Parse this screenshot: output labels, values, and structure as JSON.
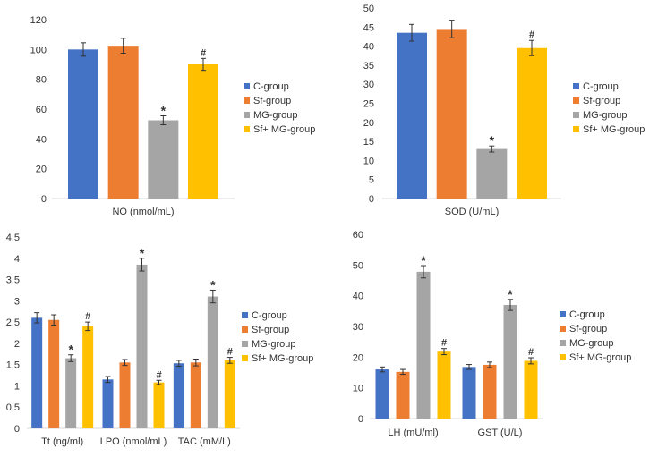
{
  "legend_colors": [
    "#4472C4",
    "#ED7D31",
    "#A5A5A5",
    "#FFC000"
  ],
  "chart_data": [
    {
      "type": "bar",
      "categories": [
        "NO (nmol/mL)"
      ],
      "series": [
        {
          "name": "C-group",
          "values": [
            100
          ],
          "errors": [
            4.5
          ],
          "marks": [
            ""
          ]
        },
        {
          "name": "Sf-group",
          "values": [
            102.5
          ],
          "errors": [
            5
          ],
          "marks": [
            ""
          ]
        },
        {
          "name": "MG-group",
          "values": [
            52.5
          ],
          "errors": [
            3
          ],
          "marks": [
            "*"
          ]
        },
        {
          "name": "Sf+ MG-group",
          "values": [
            90
          ],
          "errors": [
            4
          ],
          "marks": [
            "#"
          ]
        }
      ],
      "ylim": [
        0,
        120
      ],
      "yticks": [
        0,
        20,
        40,
        60,
        80,
        100,
        120
      ],
      "grid": false,
      "legend": "right"
    },
    {
      "type": "bar",
      "categories": [
        "SOD (U/mL)"
      ],
      "series": [
        {
          "name": "C-group",
          "values": [
            43.5
          ],
          "errors": [
            2.2
          ],
          "marks": [
            ""
          ]
        },
        {
          "name": "Sf-group",
          "values": [
            44.5
          ],
          "errors": [
            2.3
          ],
          "marks": [
            ""
          ]
        },
        {
          "name": "MG-group",
          "values": [
            13
          ],
          "errors": [
            0.8
          ],
          "marks": [
            "*"
          ]
        },
        {
          "name": "Sf+ MG-group",
          "values": [
            39.5
          ],
          "errors": [
            2
          ],
          "marks": [
            "#"
          ]
        }
      ],
      "ylim": [
        0,
        50
      ],
      "yticks": [
        0,
        5,
        10,
        15,
        20,
        25,
        30,
        35,
        40,
        45,
        50
      ],
      "grid": false,
      "legend": "right"
    },
    {
      "type": "bar",
      "categories": [
        "Tt (ng/ml)",
        "LPO (nmol/mL)",
        "TAC (mM/L)"
      ],
      "series": [
        {
          "name": "C-group",
          "values": [
            2.6,
            1.15,
            1.53
          ],
          "errors": [
            0.12,
            0.07,
            0.07
          ],
          "marks": [
            "",
            "",
            ""
          ]
        },
        {
          "name": "Sf-group",
          "values": [
            2.55,
            1.55,
            1.55
          ],
          "errors": [
            0.12,
            0.07,
            0.08
          ],
          "marks": [
            "",
            "",
            ""
          ]
        },
        {
          "name": "MG-group",
          "values": [
            1.65,
            3.85,
            3.1
          ],
          "errors": [
            0.08,
            0.15,
            0.15
          ],
          "marks": [
            "*",
            "*",
            "*"
          ]
        },
        {
          "name": "Sf+ MG-group",
          "values": [
            2.4,
            1.08,
            1.6
          ],
          "errors": [
            0.1,
            0.05,
            0.07
          ],
          "marks": [
            "#",
            "#",
            "#"
          ]
        }
      ],
      "ylim": [
        0,
        4.5
      ],
      "yticks": [
        "0",
        "0.5",
        "1",
        "1.5",
        "2",
        "2.5",
        "3",
        "3.5",
        "4",
        "4.5"
      ],
      "grid": false,
      "legend": "right"
    },
    {
      "type": "bar",
      "categories": [
        "LH (mU/ml)",
        "GST (U/L)"
      ],
      "series": [
        {
          "name": "C-group",
          "values": [
            16,
            16.8
          ],
          "errors": [
            0.8,
            0.8
          ],
          "marks": [
            "",
            ""
          ]
        },
        {
          "name": "Sf-group",
          "values": [
            15.2,
            17.5
          ],
          "errors": [
            0.8,
            0.9
          ],
          "marks": [
            "",
            ""
          ]
        },
        {
          "name": "MG-group",
          "values": [
            47.8,
            37
          ],
          "errors": [
            2,
            1.8
          ],
          "marks": [
            "*",
            "*"
          ]
        },
        {
          "name": "Sf+ MG-group",
          "values": [
            21.8,
            18.8
          ],
          "errors": [
            1,
            1
          ],
          "marks": [
            "#",
            "#"
          ]
        }
      ],
      "ylim": [
        0,
        60
      ],
      "yticks": [
        0,
        10,
        20,
        30,
        40,
        50,
        60
      ],
      "grid": false,
      "legend": "right"
    }
  ]
}
